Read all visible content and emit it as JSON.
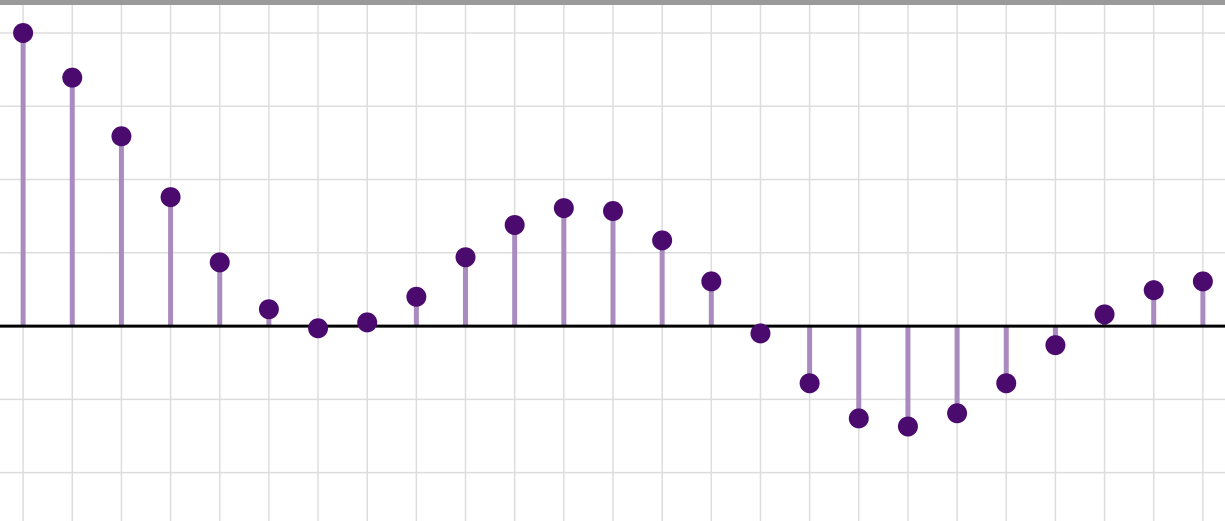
{
  "chart_data": {
    "type": "stem",
    "x": [
      0,
      1,
      2,
      3,
      4,
      5,
      6,
      7,
      8,
      9,
      10,
      11,
      12,
      13,
      14,
      15,
      16,
      17,
      18,
      19,
      20,
      21,
      22,
      23,
      24
    ],
    "values": [
      4.0,
      3.39,
      2.59,
      1.76,
      0.87,
      0.23,
      -0.03,
      0.05,
      0.4,
      0.94,
      1.38,
      1.61,
      1.57,
      1.17,
      0.61,
      -0.1,
      -0.78,
      -1.26,
      -1.37,
      -1.19,
      -0.78,
      -0.26,
      0.16,
      0.49,
      0.61
    ],
    "xlim": [
      -0.47,
      24.45
    ],
    "ylim": [
      -2.66,
      4.45
    ],
    "xticks": [
      0,
      1,
      2,
      3,
      4,
      5,
      6,
      7,
      8,
      9,
      10,
      11,
      12,
      13,
      14,
      15,
      16,
      17,
      18,
      19,
      20,
      21,
      22,
      23,
      24
    ],
    "yticks": [
      -2,
      -1,
      0,
      1,
      2,
      3,
      4
    ],
    "grid": true,
    "stem_color": "#a98bbf",
    "marker_color": "#4b0a6e",
    "baseline_color": "#000000"
  }
}
